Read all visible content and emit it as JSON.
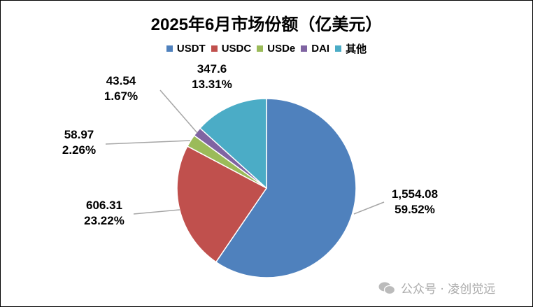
{
  "chart_data": {
    "type": "pie",
    "title": "2025年6月市场份额（亿美元）",
    "start_angle": "12 o'clock",
    "direction": "clockwise",
    "legend_position": "top",
    "slices": [
      {
        "name": "USDT",
        "value": 1554.08,
        "value_label": "1,554.08",
        "percent_label": "59.52%",
        "color": "#4F81BD"
      },
      {
        "name": "USDC",
        "value": 606.31,
        "value_label": "606.31",
        "percent_label": "23.22%",
        "color": "#C0504D"
      },
      {
        "name": "USDe",
        "value": 58.97,
        "value_label": "58.97",
        "percent_label": "2.26%",
        "color": "#9BBB59"
      },
      {
        "name": "DAI",
        "value": 43.54,
        "value_label": "43.54",
        "percent_label": "1.67%",
        "color": "#8064A2"
      },
      {
        "name": "其他",
        "value": 347.6,
        "value_label": "347.6",
        "percent_label": "13.31%",
        "color": "#4BACC6"
      }
    ]
  },
  "watermark": {
    "text": "公众号 · 凌创觉远",
    "icon": "wechat-icon"
  }
}
